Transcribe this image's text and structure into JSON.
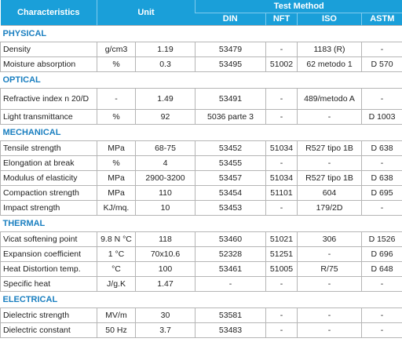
{
  "header": {
    "characteristics": "Characteristics",
    "unit": "Unit",
    "test_method": "Test Method",
    "methods": [
      "DIN",
      "NFT",
      "ISO",
      "ASTM"
    ]
  },
  "sections": [
    {
      "title": "PHYSICAL",
      "rows": [
        [
          "Density",
          "g/cm3",
          "1.19",
          "53479",
          "-",
          "1183 (R)",
          "-"
        ],
        [
          "Moisture absorption",
          "%",
          "0.3",
          "53495",
          "51002",
          "62 metodo 1",
          "D 570"
        ]
      ]
    },
    {
      "title": "OPTICAL",
      "rows": [
        [
          "Refractive index n 20/D",
          "-",
          "1.49",
          "53491",
          "-",
          "489/metodo A",
          "-"
        ],
        [
          "Light transmittance",
          "%",
          "92",
          "5036 parte 3",
          "-",
          "-",
          "D 1003"
        ]
      ]
    },
    {
      "title": "MECHANICAL",
      "rows": [
        [
          "Tensile strength",
          "MPa",
          "68-75",
          "53452",
          "51034",
          "R527 tipo 1B",
          "D 638"
        ],
        [
          "Elongation at break",
          "%",
          "4",
          "53455",
          "-",
          "-",
          "-"
        ],
        [
          "Modulus of elasticity",
          "MPa",
          "2900-3200",
          "53457",
          "51034",
          "R527 tipo 1B",
          "D 638"
        ],
        [
          "Compaction strength",
          "MPa",
          "110",
          "53454",
          "51101",
          "604",
          "D 695"
        ],
        [
          "Impact strength",
          "KJ/mq.",
          "10",
          "53453",
          "-",
          "179/2D",
          "-"
        ]
      ]
    },
    {
      "title": "THERMAL",
      "rows": [
        [
          "Vicat softening point",
          "9.8 N °C",
          "118",
          "53460",
          "51021",
          "306",
          "D 1526"
        ],
        [
          "Expansion coefficient",
          "1 °C",
          "70x10.6",
          "52328",
          "51251",
          "-",
          "D 696"
        ],
        [
          "Heat Distortion temp.",
          "°C",
          "100",
          "53461",
          "51005",
          "R/75",
          "D 648"
        ],
        [
          "Specific heat",
          "J/g.K",
          "1.47",
          "-",
          "-",
          "-",
          "-"
        ]
      ]
    },
    {
      "title": "ELECTRICAL",
      "rows": [
        [
          "Dielectric strength",
          "MV/m",
          "30",
          "53581",
          "-",
          "-",
          "-"
        ],
        [
          "Dielectric constant",
          "50 Hz",
          "3.7",
          "53483",
          "-",
          "-",
          "-"
        ]
      ]
    }
  ]
}
